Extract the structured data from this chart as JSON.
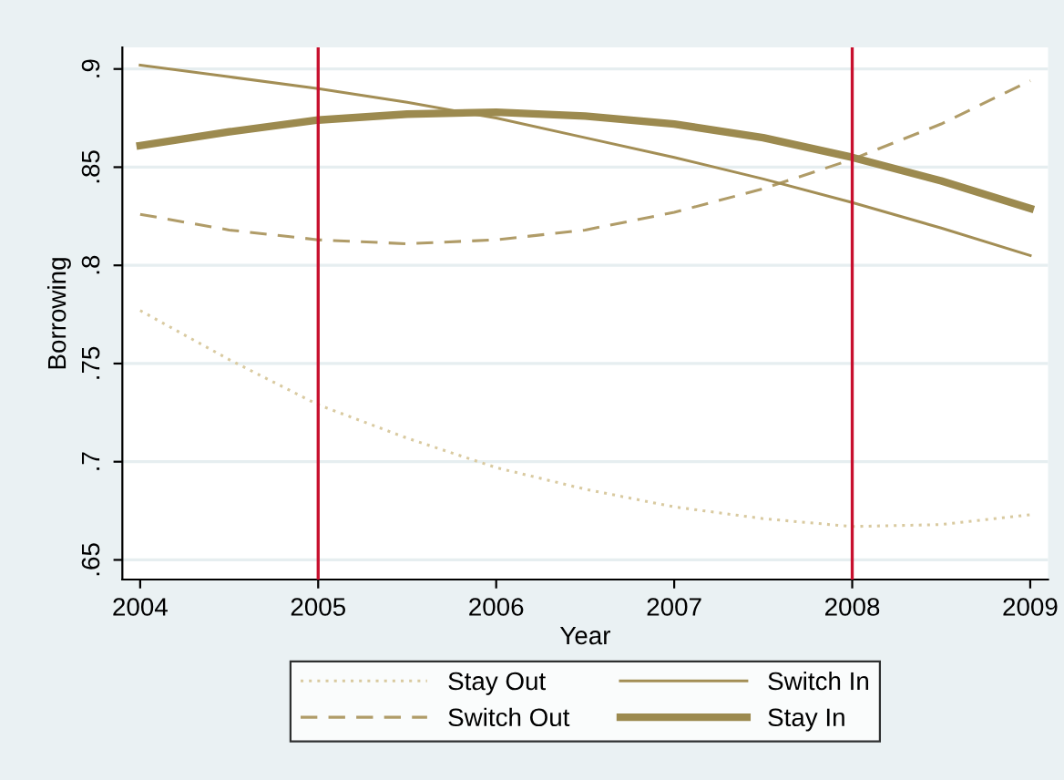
{
  "chart_data": {
    "type": "line",
    "xlabel": "Year",
    "ylabel": "Borrowing",
    "x": [
      2004,
      2004.5,
      2005,
      2005.5,
      2006,
      2006.5,
      2007,
      2007.5,
      2008,
      2008.5,
      2009
    ],
    "series": [
      {
        "name": "Stay Out",
        "color": "#d9caa0",
        "line_style": "dotted",
        "values": [
          0.777,
          0.752,
          0.729,
          0.712,
          0.697,
          0.686,
          0.677,
          0.671,
          0.667,
          0.668,
          0.673
        ]
      },
      {
        "name": "Switch Out",
        "color": "#b09c68",
        "line_style": "dashed",
        "values": [
          0.826,
          0.818,
          0.813,
          0.811,
          0.813,
          0.818,
          0.827,
          0.839,
          0.854,
          0.872,
          0.894
        ]
      },
      {
        "name": "Switch In",
        "color": "#a38e55",
        "line_style": "solid",
        "values": [
          0.902,
          0.896,
          0.89,
          0.883,
          0.875,
          0.865,
          0.855,
          0.844,
          0.832,
          0.819,
          0.805
        ]
      },
      {
        "name": "Stay In",
        "color": "#9c8a4f",
        "line_style": "solid",
        "values": [
          0.861,
          0.868,
          0.874,
          0.877,
          0.878,
          0.876,
          0.872,
          0.865,
          0.855,
          0.843,
          0.829
        ]
      }
    ],
    "xlim": [
      2003.9,
      2009.1
    ],
    "ylim": [
      0.64,
      0.911
    ],
    "xticks": [
      2004,
      2005,
      2006,
      2007,
      2008,
      2009
    ],
    "yticks": [
      {
        "value": 0.65,
        "label": ".65"
      },
      {
        "value": 0.7,
        "label": ".7"
      },
      {
        "value": 0.75,
        "label": ".75"
      },
      {
        "value": 0.8,
        "label": ".8"
      },
      {
        "value": 0.85,
        "label": ".85"
      },
      {
        "value": 0.9,
        "label": ".9"
      }
    ],
    "ref_lines": [
      {
        "axis": "x",
        "value": 2005,
        "color": "#c8102e"
      },
      {
        "axis": "x",
        "value": 2008,
        "color": "#c8102e"
      }
    ],
    "grid": "y",
    "legend": "bottom"
  }
}
